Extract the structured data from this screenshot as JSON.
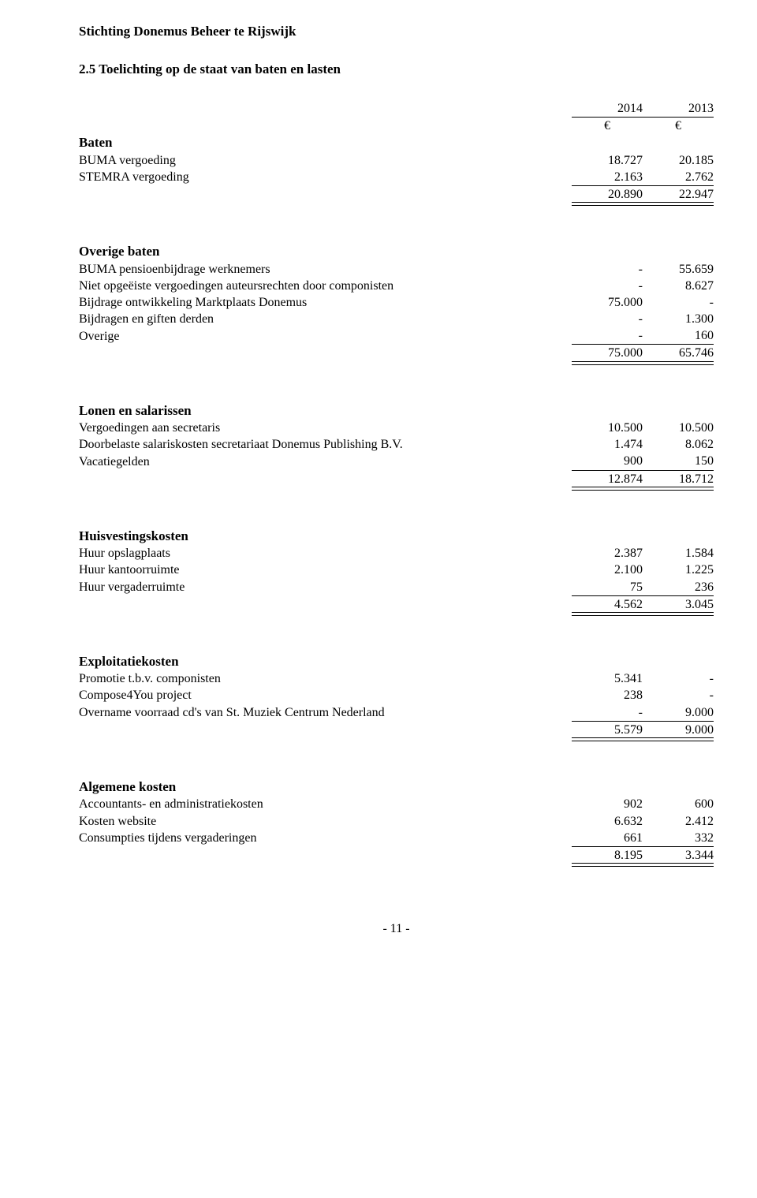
{
  "header": {
    "org": "Stichting Donemus Beheer te Rijswijk",
    "section": "2.5  Toelichting op de staat van baten en lasten"
  },
  "cols": {
    "year1": "2014",
    "year2": "2013",
    "cur": "€"
  },
  "baten": {
    "label": "Baten",
    "rows": [
      {
        "l": "BUMA vergoeding",
        "a": "18.727",
        "b": "20.185"
      },
      {
        "l": "STEMRA vergoeding",
        "a": "2.163",
        "b": "2.762"
      }
    ],
    "total": {
      "a": "20.890",
      "b": "22.947"
    }
  },
  "overige_baten": {
    "label": "Overige baten",
    "rows": [
      {
        "l": "BUMA pensioenbijdrage werknemers",
        "a": "-",
        "b": "55.659"
      },
      {
        "l": "Niet opgeëiste vergoedingen auteursrechten door componisten",
        "a": "-",
        "b": "8.627"
      },
      {
        "l": "Bijdrage ontwikkeling Marktplaats Donemus",
        "a": "75.000",
        "b": "-"
      },
      {
        "l": "Bijdragen en giften derden",
        "a": "-",
        "b": "1.300"
      },
      {
        "l": "Overige",
        "a": "-",
        "b": "160"
      }
    ],
    "total": {
      "a": "75.000",
      "b": "65.746"
    }
  },
  "lonen": {
    "label": "Lonen en salarissen",
    "rows": [
      {
        "l": "Vergoedingen aan secretaris",
        "a": "10.500",
        "b": "10.500"
      },
      {
        "l": "Doorbelaste salariskosten secretariaat Donemus Publishing B.V.",
        "a": "1.474",
        "b": "8.062"
      },
      {
        "l": "Vacatiegelden",
        "a": "900",
        "b": "150"
      }
    ],
    "total": {
      "a": "12.874",
      "b": "18.712"
    }
  },
  "huisvesting": {
    "label": "Huisvestingskosten",
    "rows": [
      {
        "l": "Huur opslagplaats",
        "a": "2.387",
        "b": "1.584"
      },
      {
        "l": "Huur kantoorruimte",
        "a": "2.100",
        "b": "1.225"
      },
      {
        "l": "Huur vergaderruimte",
        "a": "75",
        "b": "236"
      }
    ],
    "total": {
      "a": "4.562",
      "b": "3.045"
    }
  },
  "exploitatie": {
    "label": "Exploitatiekosten",
    "rows": [
      {
        "l": "Promotie t.b.v. componisten",
        "a": "5.341",
        "b": "-"
      },
      {
        "l": "Compose4You project",
        "a": "238",
        "b": "-"
      },
      {
        "l": "Overname voorraad cd's van St. Muziek Centrum Nederland",
        "a": "-",
        "b": "9.000"
      }
    ],
    "total": {
      "a": "5.579",
      "b": "9.000"
    }
  },
  "algemene": {
    "label": "Algemene kosten",
    "rows": [
      {
        "l": "Accountants- en administratiekosten",
        "a": "902",
        "b": "600"
      },
      {
        "l": "Kosten website",
        "a": "6.632",
        "b": "2.412"
      },
      {
        "l": "Consumpties tijdens vergaderingen",
        "a": "661",
        "b": "332"
      }
    ],
    "total": {
      "a": "8.195",
      "b": "3.344"
    }
  },
  "footer": {
    "page": "- 11 -"
  }
}
